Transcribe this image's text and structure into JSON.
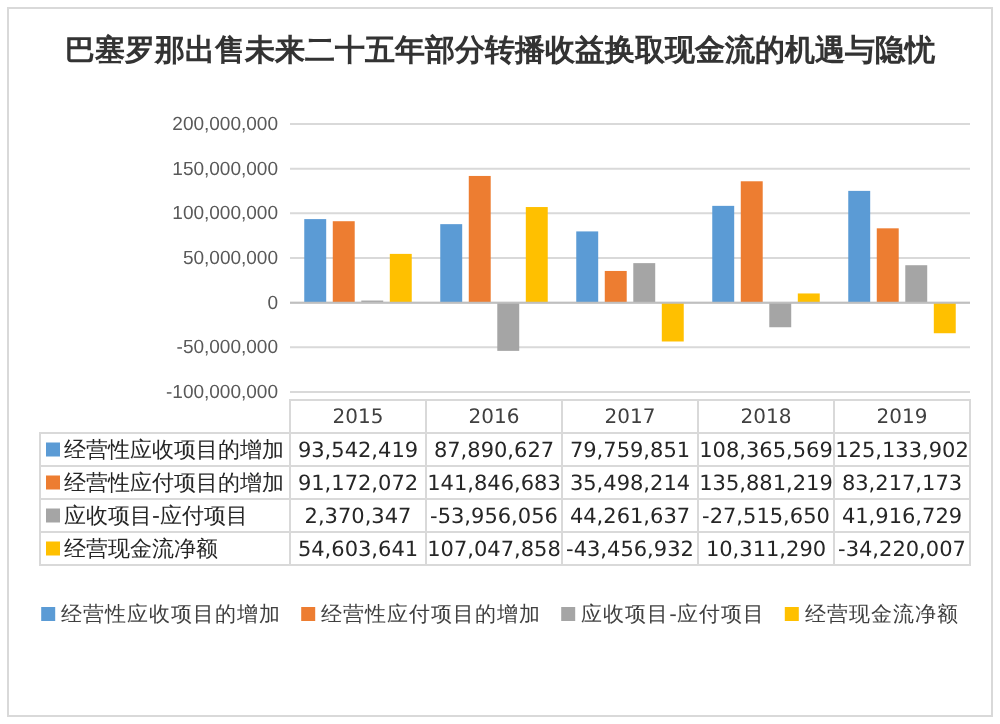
{
  "chart_data": {
    "type": "bar",
    "title": "巴塞罗那出售未来二十五年部分转播收益换取现金流的机遇与隐忧",
    "categories": [
      "2015",
      "2016",
      "2017",
      "2018",
      "2019"
    ],
    "series": [
      {
        "name": "经营性应收项目的增加",
        "color": "#5b9bd5",
        "values": [
          93542419,
          87890627,
          79759851,
          108365569,
          125133902
        ],
        "value_labels": [
          "93,542,419",
          "87,890,627",
          "79,759,851",
          "108,365,569",
          "125,133,902"
        ]
      },
      {
        "name": "经营性应付项目的增加",
        "color": "#ed7d31",
        "values": [
          91172072,
          141846683,
          35498214,
          135881219,
          83217173
        ],
        "value_labels": [
          "91,172,072",
          "141,846,683",
          "35,498,214",
          "135,881,219",
          "83,217,173"
        ]
      },
      {
        "name": "应收项目-应付项目",
        "color": "#a5a5a5",
        "values": [
          2370347,
          -53956056,
          44261637,
          -27515650,
          41916729
        ],
        "value_labels": [
          "2,370,347",
          "-53,956,056",
          "44,261,637",
          "-27,515,650",
          "41,916,729"
        ]
      },
      {
        "name": "经营现金流净额",
        "color": "#ffc000",
        "values": [
          54603641,
          107047858,
          -43456932,
          10311290,
          -34220007
        ],
        "value_labels": [
          "54,603,641",
          "107,047,858",
          "-43,456,932",
          "10,311,290",
          "-34,220,007"
        ]
      }
    ],
    "ylim": [
      -100000000,
      200000000
    ],
    "yticks": [
      {
        "value": -100000000,
        "label": "-100,000,000"
      },
      {
        "value": -50000000,
        "label": "-50,000,000"
      },
      {
        "value": 0,
        "label": "0"
      },
      {
        "value": 50000000,
        "label": "50,000,000"
      },
      {
        "value": 100000000,
        "label": "100,000,000"
      },
      {
        "value": 150000000,
        "label": "150,000,000"
      },
      {
        "value": 200000000,
        "label": "200,000,000"
      }
    ],
    "grid": "y",
    "legend": "bottom"
  }
}
